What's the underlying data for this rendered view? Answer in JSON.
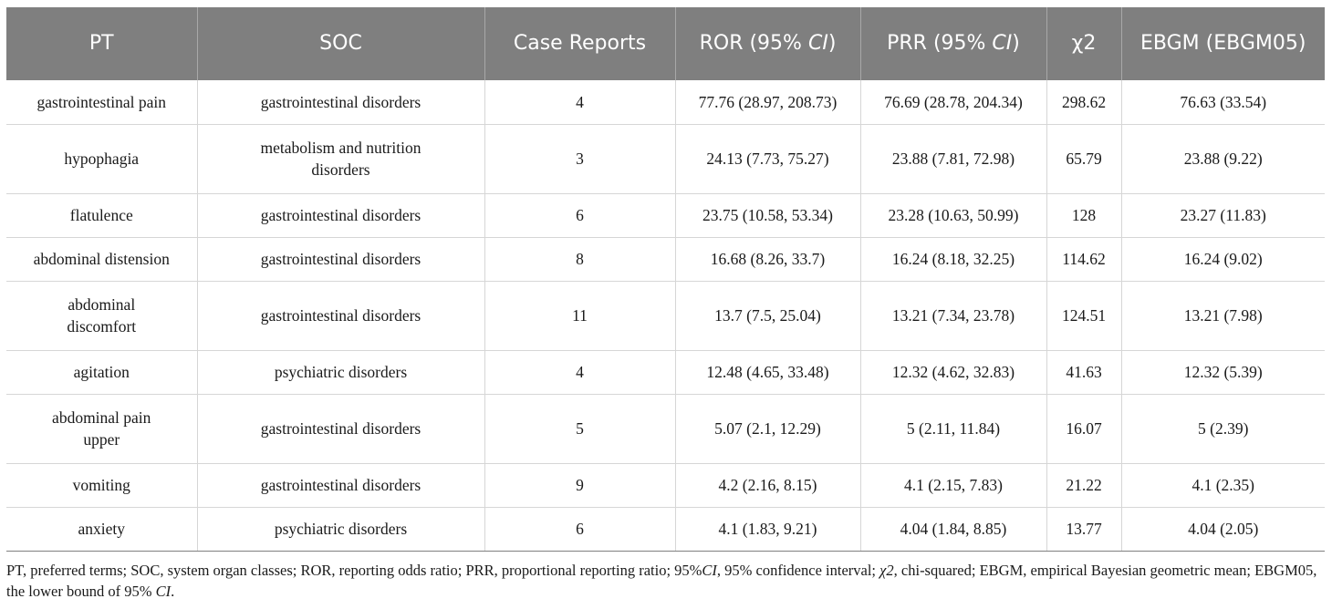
{
  "table": {
    "headers": [
      {
        "text": "PT"
      },
      {
        "text": "SOC"
      },
      {
        "text": "Case Reports"
      },
      {
        "pre": "ROR (95% ",
        "em": "CI",
        "post": ")"
      },
      {
        "pre": "PRR (95% ",
        "em": "CI",
        "post": ")"
      },
      {
        "text": "χ2"
      },
      {
        "text": "EBGM (EBGM05)"
      }
    ],
    "rows": [
      {
        "pt": "gastrointestinal pain",
        "soc": "gastrointestinal disorders",
        "cases": "4",
        "ror": "77.76 (28.97, 208.73)",
        "prr": "76.69 (28.78, 204.34)",
        "chi2": "298.62",
        "ebgm": "76.63 (33.54)"
      },
      {
        "pt": "hypophagia",
        "soc": "metabolism and nutrition disorders",
        "cases": "3",
        "ror": "24.13 (7.73, 75.27)",
        "prr": "23.88 (7.81, 72.98)",
        "chi2": "65.79",
        "ebgm": "23.88 (9.22)"
      },
      {
        "pt": "flatulence",
        "soc": "gastrointestinal disorders",
        "cases": "6",
        "ror": "23.75 (10.58, 53.34)",
        "prr": "23.28 (10.63, 50.99)",
        "chi2": "128",
        "ebgm": "23.27 (11.83)"
      },
      {
        "pt": "abdominal distension",
        "soc": "gastrointestinal disorders",
        "cases": "8",
        "ror": "16.68 (8.26, 33.7)",
        "prr": "16.24 (8.18, 32.25)",
        "chi2": "114.62",
        "ebgm": "16.24 (9.02)"
      },
      {
        "pt": "abdominal discomfort",
        "soc": "gastrointestinal disorders",
        "cases": "11",
        "ror": "13.7 (7.5, 25.04)",
        "prr": "13.21 (7.34, 23.78)",
        "chi2": "124.51",
        "ebgm": "13.21 (7.98)"
      },
      {
        "pt": "agitation",
        "soc": "psychiatric disorders",
        "cases": "4",
        "ror": "12.48 (4.65, 33.48)",
        "prr": "12.32 (4.62, 32.83)",
        "chi2": "41.63",
        "ebgm": "12.32 (5.39)"
      },
      {
        "pt": "abdominal pain upper",
        "soc": "gastrointestinal disorders",
        "cases": "5",
        "ror": "5.07 (2.1, 12.29)",
        "prr": "5 (2.11, 11.84)",
        "chi2": "16.07",
        "ebgm": "5 (2.39)"
      },
      {
        "pt": "vomiting",
        "soc": "gastrointestinal disorders",
        "cases": "9",
        "ror": "4.2 (2.16, 8.15)",
        "prr": "4.1 (2.15, 7.83)",
        "chi2": "21.22",
        "ebgm": "4.1 (2.35)"
      },
      {
        "pt": "anxiety",
        "soc": "psychiatric disorders",
        "cases": "6",
        "ror": "4.1 (1.83, 9.21)",
        "prr": "4.04 (1.84, 8.85)",
        "chi2": "13.77",
        "ebgm": "4.04 (2.05)"
      }
    ]
  },
  "footnote": [
    {
      "t": "PT, preferred terms; SOC, system organ classes; ROR, reporting odds ratio; PRR, proportional reporting ratio; 95%"
    },
    {
      "t": "CI",
      "em": true
    },
    {
      "t": ", 95% confidence interval; "
    },
    {
      "t": "χ2",
      "em": true
    },
    {
      "t": ", chi-squared; EBGM, empirical Bayesian geometric mean; EBGM05, the lower bound of 95% "
    },
    {
      "t": "CI",
      "em": true
    },
    {
      "t": "."
    }
  ],
  "colors": {
    "header_bg": "#7f7f7f",
    "header_text": "#ffffff",
    "grid": "#d6d6d6"
  }
}
